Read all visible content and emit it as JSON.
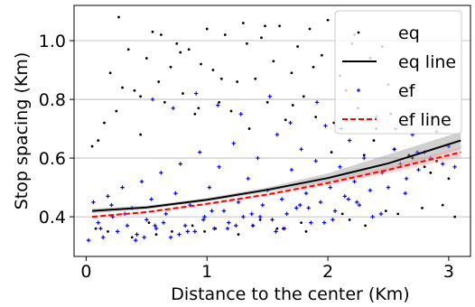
{
  "chart_data": {
    "type": "scatter",
    "xlabel": "Distance to the center (Km)",
    "ylabel": "Stop spacing (Km)",
    "xlim": [
      -0.1,
      3.18
    ],
    "ylim": [
      0.265,
      1.12
    ],
    "xticks": [
      0,
      1,
      2,
      3
    ],
    "xtick_labels": [
      "0",
      "1",
      "2",
      "3"
    ],
    "yticks": [
      0.4,
      0.6,
      0.8,
      1.0
    ],
    "ytick_labels": [
      "0.4",
      "0.6",
      "0.8",
      "1.0"
    ],
    "grid": "horizontal",
    "legend_position": "top-right",
    "legend": [
      {
        "label": "eq",
        "kind": "points",
        "color": "#000000"
      },
      {
        "label": "eq line",
        "kind": "line",
        "color": "#000000"
      },
      {
        "label": "ef",
        "kind": "points",
        "color": "#0000ff"
      },
      {
        "label": "ef line",
        "kind": "dashed-line",
        "color": "#ff0000"
      }
    ],
    "series": [
      {
        "name": "eq",
        "kind": "scatter",
        "marker": "dot",
        "color": "#000000",
        "x": [
          0.05,
          0.1,
          0.15,
          0.2,
          0.25,
          0.3,
          0.35,
          0.4,
          0.45,
          0.5,
          0.55,
          0.6,
          0.65,
          0.7,
          0.75,
          0.8,
          0.85,
          0.9,
          0.95,
          1.0,
          1.05,
          1.1,
          1.15,
          1.2,
          1.25,
          1.3,
          1.35,
          1.4,
          1.45,
          1.5,
          1.55,
          1.6,
          1.65,
          1.7,
          1.75,
          1.8,
          1.85,
          1.9,
          1.95,
          2.0,
          2.05,
          2.1,
          2.15,
          2.2,
          2.25,
          2.3,
          2.35,
          2.4,
          2.45,
          2.5,
          2.55,
          2.6,
          2.7,
          2.8,
          2.9,
          3.0,
          0.27,
          0.45,
          0.62,
          0.78,
          0.93,
          1.12,
          1.33,
          1.48,
          1.71,
          1.88,
          2.03,
          2.22,
          2.38,
          2.52,
          2.67,
          2.85,
          0.52,
          0.71,
          0.88,
          1.07,
          1.26,
          1.44,
          1.63,
          1.82,
          2.12,
          2.31,
          2.48,
          2.95,
          3.05,
          0.08,
          0.18,
          0.38,
          0.58,
          0.98,
          1.38,
          1.58,
          1.78,
          2.18,
          2.58,
          2.78
        ],
        "y": [
          0.64,
          0.66,
          0.72,
          0.89,
          0.76,
          0.84,
          0.97,
          0.83,
          0.81,
          0.94,
          1.03,
          0.86,
          0.79,
          0.91,
          0.99,
          0.82,
          0.97,
          0.75,
          0.92,
          1.04,
          0.9,
          0.79,
          1.02,
          0.76,
          0.86,
          1.06,
          0.7,
          0.87,
          1.01,
          0.79,
          0.93,
          1.05,
          0.73,
          0.89,
          0.98,
          0.81,
          1.04,
          0.74,
          0.95,
          1.07,
          0.72,
          0.88,
          0.83,
          0.99,
          0.77,
          0.61,
          0.94,
          0.7,
          0.98,
          0.85,
          0.63,
          0.92,
          0.6,
          0.57,
          0.59,
          0.53,
          1.08,
          0.68,
          1.02,
          0.96,
          0.77,
          0.87,
          0.99,
          1.05,
          0.78,
          0.91,
          0.62,
          1.02,
          0.66,
          0.75,
          0.61,
          0.55,
          0.38,
          0.35,
          0.37,
          0.36,
          0.34,
          0.39,
          0.36,
          0.35,
          0.41,
          0.37,
          0.42,
          0.44,
          0.4,
          0.36,
          0.35,
          0.33,
          0.34,
          0.35,
          0.37,
          0.36,
          0.38,
          0.39,
          0.41,
          0.43
        ]
      },
      {
        "name": "ef",
        "kind": "scatter",
        "marker": "plus",
        "color": "#0000ff",
        "x": [
          0.02,
          0.06,
          0.1,
          0.14,
          0.18,
          0.22,
          0.26,
          0.3,
          0.34,
          0.38,
          0.42,
          0.46,
          0.5,
          0.54,
          0.58,
          0.62,
          0.66,
          0.7,
          0.74,
          0.78,
          0.82,
          0.86,
          0.9,
          0.94,
          0.98,
          1.02,
          1.06,
          1.1,
          1.14,
          1.18,
          1.22,
          1.26,
          1.3,
          1.34,
          1.38,
          1.42,
          1.46,
          1.5,
          1.54,
          1.58,
          1.62,
          1.66,
          1.7,
          1.74,
          1.78,
          1.82,
          1.86,
          1.9,
          1.94,
          1.98,
          2.02,
          2.06,
          2.1,
          2.14,
          2.18,
          2.22,
          2.26,
          2.3,
          2.35,
          2.4,
          2.45,
          2.5,
          2.55,
          2.6,
          2.65,
          2.7,
          2.75,
          2.8,
          2.85,
          2.9,
          2.95,
          3.0,
          3.05,
          0.12,
          0.32,
          0.48,
          0.64,
          0.84,
          1.04,
          1.24,
          1.44,
          1.64,
          1.84,
          2.04,
          2.24,
          2.44,
          2.64,
          0.21,
          0.41,
          0.57,
          0.77,
          0.97,
          1.17,
          1.37,
          1.57,
          1.77,
          1.97,
          2.17,
          2.37,
          0.55,
          0.72,
          0.91,
          1.09,
          1.28,
          1.52,
          1.69,
          1.91,
          2.11,
          2.33,
          2.56,
          2.74
        ],
        "y": [
          0.32,
          0.45,
          0.38,
          0.33,
          0.47,
          0.4,
          0.35,
          0.5,
          0.37,
          0.43,
          0.34,
          0.52,
          0.39,
          0.46,
          0.36,
          0.55,
          0.41,
          0.33,
          0.48,
          0.58,
          0.37,
          0.44,
          0.35,
          0.62,
          0.4,
          0.5,
          0.36,
          0.57,
          0.42,
          0.38,
          0.65,
          0.45,
          0.4,
          0.53,
          0.37,
          0.6,
          0.44,
          0.49,
          0.39,
          0.68,
          0.46,
          0.41,
          0.56,
          0.43,
          0.63,
          0.48,
          0.38,
          0.59,
          0.45,
          0.71,
          0.5,
          0.42,
          0.57,
          0.47,
          0.66,
          0.52,
          0.44,
          0.6,
          0.49,
          0.74,
          0.55,
          0.5,
          0.63,
          0.58,
          0.53,
          0.68,
          0.56,
          0.62,
          0.6,
          0.69,
          0.58,
          0.64,
          0.57,
          0.36,
          0.41,
          0.33,
          0.38,
          0.35,
          0.42,
          0.37,
          0.4,
          0.36,
          0.43,
          0.39,
          0.45,
          0.41,
          0.48,
          0.44,
          0.32,
          0.37,
          0.34,
          0.39,
          0.36,
          0.41,
          0.35,
          0.44,
          0.38,
          0.46,
          0.4,
          0.8,
          0.77,
          0.82,
          0.78,
          0.75,
          0.81,
          0.72,
          0.79,
          0.7,
          0.73,
          0.7,
          0.62
        ]
      },
      {
        "name": "eq line",
        "kind": "line",
        "color": "#000000",
        "x": [
          0.05,
          0.5,
          1.0,
          1.5,
          2.0,
          2.5,
          3.1
        ],
        "y": [
          0.42,
          0.432,
          0.458,
          0.492,
          0.532,
          0.582,
          0.66
        ],
        "ci_upper": [
          0.428,
          0.438,
          0.464,
          0.5,
          0.548,
          0.612,
          0.69
        ],
        "ci_lower": [
          0.412,
          0.426,
          0.452,
          0.484,
          0.518,
          0.556,
          0.63
        ]
      },
      {
        "name": "ef line",
        "kind": "dashed-line",
        "color": "#ff0000",
        "x": [
          0.05,
          0.5,
          1.0,
          1.5,
          2.0,
          2.5,
          3.1
        ],
        "y": [
          0.4,
          0.416,
          0.444,
          0.476,
          0.515,
          0.56,
          0.62
        ],
        "ci_upper": [
          0.404,
          0.42,
          0.448,
          0.481,
          0.522,
          0.572,
          0.638
        ],
        "ci_lower": [
          0.396,
          0.412,
          0.44,
          0.471,
          0.508,
          0.548,
          0.602
        ]
      }
    ]
  }
}
